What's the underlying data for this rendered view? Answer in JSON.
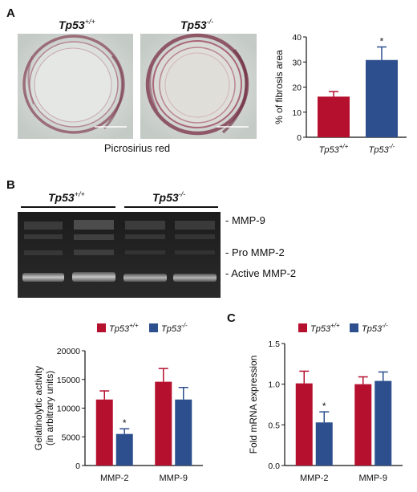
{
  "panels": {
    "a": {
      "letter": "A",
      "label_left": "Tp53",
      "sup_left": "+/+",
      "label_right": "Tp53",
      "sup_right": "-/-",
      "stain": "Picrosirius red"
    },
    "b": {
      "letter": "B",
      "gel_label_left": "Tp53",
      "gel_sup_left": "+/+",
      "gel_label_right": "Tp53",
      "gel_sup_right": "-/-",
      "bands": [
        "- MMP-9",
        "- Pro MMP-2",
        "- Active MMP-2"
      ]
    },
    "c": {
      "letter": "C"
    }
  },
  "colors": {
    "wt": "#b5112f",
    "ko": "#2d4f8e"
  },
  "chart_data": [
    {
      "id": "fibrosis",
      "type": "bar",
      "categories": [
        "Tp53+/+",
        "Tp53-/-"
      ],
      "cat_base": [
        "Tp53",
        "Tp53"
      ],
      "cat_sup": [
        "+/+",
        "-/-"
      ],
      "values": [
        16.2,
        30.8
      ],
      "errors": [
        2.0,
        5.2
      ],
      "ylabel": "% of fibrosis area",
      "ylim": [
        0,
        40
      ],
      "yticks": [
        0,
        10,
        20,
        30,
        40
      ],
      "significance": [
        "",
        "*"
      ]
    },
    {
      "id": "gelatinolytic",
      "type": "bar",
      "categories": [
        "MMP-2",
        "MMP-9"
      ],
      "series": [
        {
          "name": "Tp53+/+",
          "base": "Tp53",
          "sup": "+/+",
          "values": [
            11500,
            14600
          ],
          "errors": [
            1500,
            2300
          ]
        },
        {
          "name": "Tp53-/-",
          "base": "Tp53",
          "sup": "-/-",
          "values": [
            5500,
            11500
          ],
          "errors": [
            900,
            2100
          ]
        }
      ],
      "ylabel_line1": "Gelatinolytic activity",
      "ylabel_line2": "(in arbitrary units)",
      "ylim": [
        0,
        20000
      ],
      "yticks": [
        0,
        5000,
        10000,
        15000,
        20000
      ],
      "significance": [
        [
          "",
          "*"
        ],
        [
          "",
          ""
        ]
      ]
    },
    {
      "id": "mrna",
      "type": "bar",
      "categories": [
        "MMP-2",
        "MMP-9"
      ],
      "series": [
        {
          "name": "Tp53+/+",
          "base": "Tp53",
          "sup": "+/+",
          "values": [
            1.01,
            1.0
          ],
          "errors": [
            0.15,
            0.09
          ]
        },
        {
          "name": "Tp53-/-",
          "base": "Tp53",
          "sup": "-/-",
          "values": [
            0.53,
            1.04
          ],
          "errors": [
            0.13,
            0.11
          ]
        }
      ],
      "ylabel": "Fold mRNA expression",
      "ylim": [
        0,
        1.5
      ],
      "yticks": [
        "0.0",
        "0.5",
        "1.0",
        "1.5"
      ],
      "significance": [
        [
          "",
          "*"
        ],
        [
          "",
          ""
        ]
      ]
    }
  ]
}
